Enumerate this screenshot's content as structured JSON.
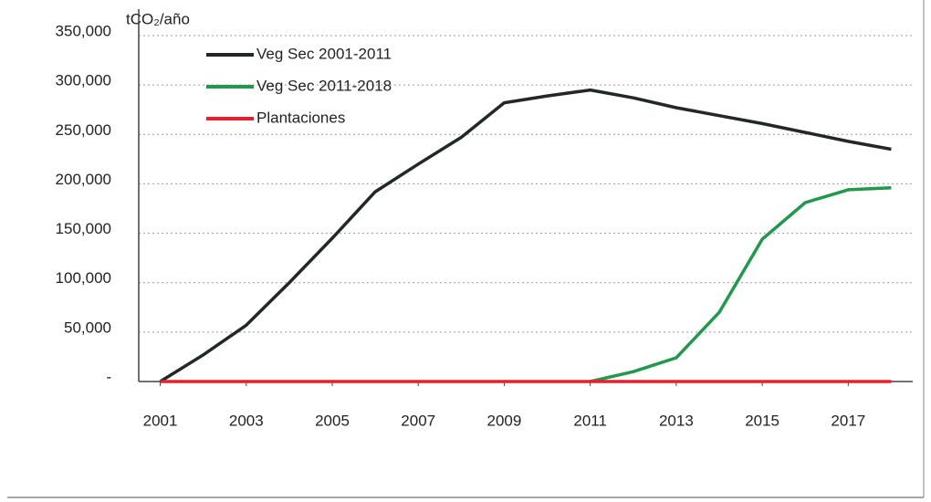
{
  "chart_data": {
    "type": "line",
    "y_label": "tCO₂/año",
    "x": [
      2001,
      2002,
      2003,
      2004,
      2005,
      2006,
      2007,
      2008,
      2009,
      2010,
      2011,
      2012,
      2013,
      2014,
      2015,
      2016,
      2017,
      2018
    ],
    "series": [
      {
        "name": "Veg Sec 2001-2011",
        "color": "#1f2a24",
        "values": [
          0,
          27000,
          57000,
          100000,
          145000,
          192000,
          220000,
          247000,
          282000,
          289000,
          295000,
          287000,
          277000,
          269000,
          261000,
          252000,
          243000,
          235000
        ]
      },
      {
        "name": "Veg Sec 2011-2018",
        "color": "#1f9a4a",
        "values": [
          null,
          null,
          null,
          null,
          null,
          null,
          null,
          null,
          null,
          null,
          0,
          10000,
          24000,
          70000,
          144000,
          181000,
          194000,
          196000
        ]
      },
      {
        "name": "Plantaciones",
        "color": "#e8202a",
        "values": [
          0,
          0,
          0,
          0,
          0,
          0,
          0,
          0,
          0,
          0,
          0,
          0,
          0,
          0,
          0,
          0,
          0,
          0
        ]
      }
    ],
    "xlim": [
      2000.5,
      2018.5
    ],
    "xticks": [
      2001,
      2003,
      2005,
      2007,
      2009,
      2011,
      2013,
      2015,
      2017
    ],
    "ylim": [
      0,
      350000
    ],
    "yticks": [
      {
        "value": 0,
        "label": "-"
      },
      {
        "value": 50000,
        "label": "50,000"
      },
      {
        "value": 100000,
        "label": "100,000"
      },
      {
        "value": 150000,
        "label": "150,000"
      },
      {
        "value": 200000,
        "label": "200,000"
      },
      {
        "value": 250000,
        "label": "250,000"
      },
      {
        "value": 300000,
        "label": "300,000"
      },
      {
        "value": 350000,
        "label": "350,000"
      }
    ],
    "grid": true,
    "legend": "top-left"
  }
}
